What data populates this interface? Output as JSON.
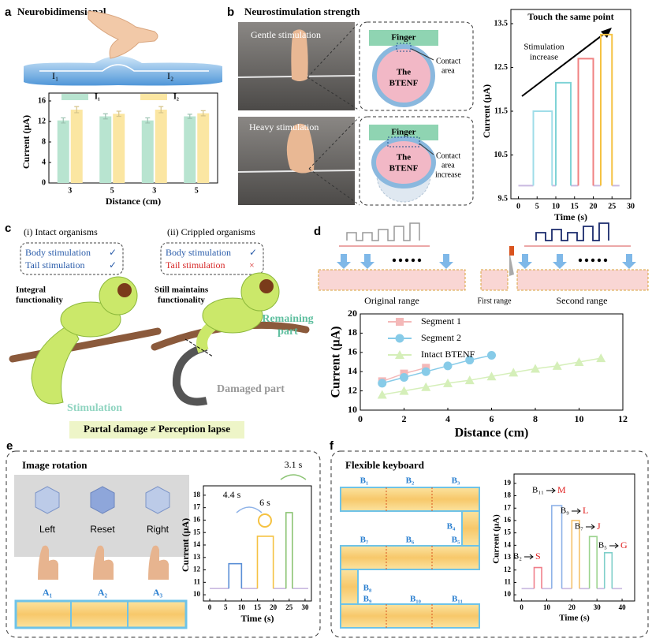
{
  "figure": {
    "panels": [
      "a",
      "b",
      "c",
      "d",
      "e",
      "f"
    ],
    "a": {
      "title": "Neurobidimensional",
      "labels": [
        "I₁",
        "I₂"
      ]
    },
    "b": {
      "title": "Neurostimulation strength",
      "photos": [
        "Gentle stimulation",
        "Heavy stimulation"
      ],
      "gentle": {
        "finger": "Finger",
        "btenf": [
          "The",
          "BTENF"
        ],
        "contact": [
          "Contact",
          "area"
        ]
      },
      "heavy": {
        "finger": "Finger",
        "btenf": [
          "The",
          "BTENF"
        ],
        "contact": [
          "Contact",
          "area",
          "increase"
        ]
      }
    },
    "c": {
      "intact": {
        "title": "(i) Intact organisms",
        "body": "Body stimulation",
        "body_mark": "✓",
        "tail": "Tail stimulation",
        "tail_mark": "✓",
        "note": [
          "Integral",
          "functionality"
        ]
      },
      "crippled": {
        "title": "(ii) Crippled organisms",
        "body": "Body stimulation",
        "body_mark": "✓",
        "tail": "Tail stimulation",
        "tail_mark": "×",
        "note": [
          "Still  maintains",
          "functionality"
        ]
      },
      "remaining": [
        "Remaining",
        "part"
      ],
      "damaged": "Damaged part",
      "stimulation": "Stimulation",
      "conclusion": "Partal damage ≠ Perception lapse"
    },
    "d": {
      "ranges": [
        "Original range",
        "First range",
        "Second range"
      ]
    },
    "e": {
      "title": "Image rotation",
      "cubes": [
        "Left",
        "Reset",
        "Right"
      ],
      "keys": [
        "A₁",
        "A₂",
        "A₃"
      ]
    },
    "f": {
      "title": "Flexible keyboard",
      "keys": [
        "B₁",
        "B₂",
        "B₃",
        "B₄",
        "B₅",
        "B₆",
        "B₇",
        "B₈",
        "B₉",
        "B₁₀",
        "B₁₁"
      ]
    }
  },
  "chart_data": [
    {
      "type": "bar",
      "categories": [
        "3",
        "5",
        "3",
        "5"
      ],
      "series": [
        {
          "name": "I₁",
          "color": "#b8e4d0",
          "values": [
            12.2,
            13.0,
            12.2,
            13.0
          ],
          "errors": [
            0.5,
            0.5,
            0.5,
            0.4
          ]
        },
        {
          "name": "I₂",
          "color": "#fbe6a2",
          "values": [
            14.3,
            13.5,
            14.3,
            13.6
          ],
          "errors": [
            0.6,
            0.5,
            0.6,
            0.5
          ]
        }
      ],
      "ylim": [
        0,
        16
      ],
      "yticks": [
        0,
        4,
        8,
        12,
        16
      ],
      "x_label": "Distance (cm)",
      "y_label": "Current (μA)",
      "legend": "top"
    },
    {
      "type": "line",
      "title": "Touch the same point",
      "annotation": [
        "Stimulation",
        "increase"
      ],
      "series": [
        {
          "color": "#c9b9e0",
          "x": [
            0,
            4,
            4,
            9,
            10,
            10,
            14,
            16,
            16,
            20,
            22,
            22,
            25,
            27
          ],
          "values": [
            9.8,
            9.8,
            null,
            9.8,
            9.8,
            null,
            9.8,
            9.8,
            null,
            9.8,
            9.8,
            null,
            9.8,
            9.8
          ]
        },
        {
          "color": "#9fdde8",
          "x": [
            4,
            4,
            9,
            9
          ],
          "values": [
            9.8,
            11.5,
            11.5,
            9.8
          ]
        },
        {
          "color": "#7fd3d6",
          "x": [
            10,
            10,
            14,
            14
          ],
          "values": [
            9.8,
            12.15,
            12.15,
            9.8
          ]
        },
        {
          "color": "#f08080",
          "x": [
            16,
            16,
            20,
            20
          ],
          "values": [
            9.8,
            12.7,
            12.7,
            9.8
          ]
        },
        {
          "color": "#f5c242",
          "x": [
            22,
            22,
            25,
            25
          ],
          "values": [
            9.8,
            13.25,
            13.25,
            9.8
          ]
        }
      ],
      "xlim": [
        -2,
        30
      ],
      "xticks": [
        0,
        5,
        10,
        15,
        20,
        25,
        30
      ],
      "ylim": [
        9.5,
        13.5
      ],
      "yticks": [
        9.5,
        10.5,
        11.5,
        12.5,
        13.5
      ],
      "x_label": "Time (s)",
      "y_label": "Current (μA)"
    },
    {
      "type": "line",
      "series": [
        {
          "name": "Segment 1",
          "color": "#f4b8b8",
          "marker": "square",
          "x": [
            1,
            2,
            3
          ],
          "values": [
            13.0,
            13.8,
            14.4
          ]
        },
        {
          "name": "Segment 2",
          "color": "#87cbe8",
          "marker": "circle",
          "x": [
            1,
            2,
            3,
            4,
            5,
            6
          ],
          "values": [
            12.8,
            13.4,
            14.0,
            14.6,
            15.2,
            15.7
          ]
        },
        {
          "name": "Intact BTENF",
          "color": "#d5efb9",
          "marker": "triangle",
          "x": [
            1,
            2,
            3,
            4,
            5,
            6,
            7,
            8,
            9,
            10,
            11
          ],
          "values": [
            11.6,
            12.0,
            12.4,
            12.8,
            13.1,
            13.5,
            13.9,
            14.3,
            14.6,
            15.0,
            15.4
          ]
        }
      ],
      "xlim": [
        0,
        12
      ],
      "xticks": [
        0,
        2,
        4,
        6,
        8,
        10,
        12
      ],
      "ylim": [
        10,
        20
      ],
      "yticks": [
        10,
        12,
        14,
        16,
        18,
        20
      ],
      "x_label": "Distance (cm)",
      "y_label": "Current (μA)",
      "legend": "top-left"
    },
    {
      "type": "line",
      "annotations": [
        "4.4 s",
        "6 s",
        "3.1 s"
      ],
      "series": [
        {
          "color": "#c9b9e0",
          "x": [
            0,
            6,
            6,
            10,
            15,
            15,
            20,
            24,
            24,
            26,
            31
          ],
          "values": [
            10.5,
            10.5,
            null,
            10.5,
            10.5,
            null,
            10.5,
            10.5,
            null,
            10.5,
            10.5
          ]
        },
        {
          "color": "#5b8fd6",
          "x": [
            6,
            6,
            10,
            10
          ],
          "values": [
            10.5,
            12.5,
            12.5,
            10.5
          ]
        },
        {
          "color": "#f5c242",
          "x": [
            15,
            15,
            20,
            20
          ],
          "values": [
            10.5,
            14.7,
            14.7,
            10.5
          ]
        },
        {
          "color": "#8cc474",
          "x": [
            24,
            24,
            26,
            26
          ],
          "values": [
            10.5,
            16.6,
            16.6,
            10.5
          ]
        }
      ],
      "xlim": [
        -2,
        32
      ],
      "xticks": [
        0,
        5,
        10,
        15,
        20,
        25,
        30
      ],
      "ylim": [
        9.5,
        18.5
      ],
      "yticks": [
        10,
        11,
        12,
        13,
        14,
        15,
        16,
        17,
        18
      ],
      "x_label": "Time (s)",
      "y_label": "Current (μA)"
    },
    {
      "type": "line",
      "annotations": [
        {
          "key": "B₂",
          "letter": "S"
        },
        {
          "key": "B₁₁",
          "letter": "M"
        },
        {
          "key": "B₉",
          "letter": "L"
        },
        {
          "key": "B₇",
          "letter": "J"
        },
        {
          "key": "B₅",
          "letter": "G"
        }
      ],
      "series": [
        {
          "color": "#c9b9e0",
          "x": [
            0,
            5,
            5,
            8,
            12,
            12,
            16,
            20,
            20,
            23,
            27,
            27,
            30,
            33,
            33,
            36,
            40
          ],
          "values": [
            10.5,
            10.5,
            null,
            10.5,
            10.5,
            null,
            10.5,
            10.5,
            null,
            10.5,
            10.5,
            null,
            10.5,
            10.5,
            null,
            10.5,
            10.5
          ]
        },
        {
          "color": "#f07f8a",
          "x": [
            5,
            5,
            8,
            8
          ],
          "values": [
            10.5,
            12.2,
            12.2,
            10.5
          ]
        },
        {
          "color": "#8fb3e8",
          "x": [
            12,
            12,
            16,
            16
          ],
          "values": [
            10.5,
            17.2,
            17.2,
            10.5
          ]
        },
        {
          "color": "#f5c26b",
          "x": [
            20,
            20,
            23,
            23
          ],
          "values": [
            10.5,
            16.0,
            16.0,
            10.5
          ]
        },
        {
          "color": "#9bd38d",
          "x": [
            27,
            27,
            30,
            30
          ],
          "values": [
            10.5,
            14.7,
            14.7,
            10.5
          ]
        },
        {
          "color": "#7fcfc9",
          "x": [
            33,
            33,
            36,
            36
          ],
          "values": [
            10.5,
            13.4,
            13.4,
            10.5
          ]
        }
      ],
      "xlim": [
        -3,
        45
      ],
      "xticks": [
        0,
        10,
        20,
        30,
        40
      ],
      "ylim": [
        9.5,
        19.5
      ],
      "yticks": [
        10,
        11,
        12,
        13,
        14,
        15,
        16,
        17,
        18,
        19
      ],
      "x_label": "Time (s)",
      "y_label": "Current (μA)"
    }
  ]
}
